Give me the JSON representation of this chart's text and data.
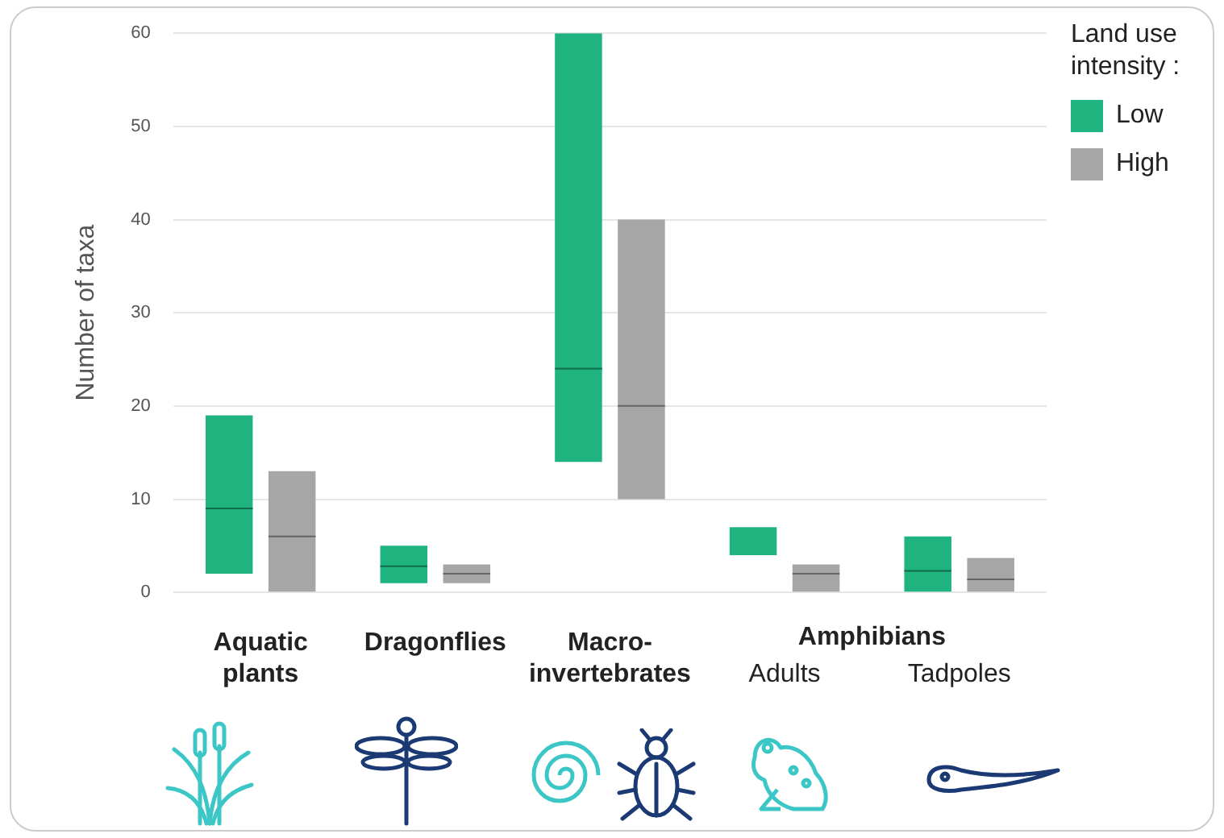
{
  "chart_data": {
    "type": "box",
    "ylabel": "Number of taxa",
    "legend_title": "Land use intensity :",
    "categories": [
      "Aquatic plants",
      "Dragonflies",
      "Macro-invertebrates",
      "Adults",
      "Tadpoles"
    ],
    "series": [
      {
        "name": "Low",
        "color": "#1fb47f",
        "boxes": [
          {
            "low": 2,
            "q1": 2,
            "median": 9,
            "q3": 19,
            "high": 19
          },
          {
            "low": 1,
            "q1": 1,
            "median": 2.8,
            "q3": 5,
            "high": 5
          },
          {
            "low": 14,
            "q1": 14,
            "median": 24,
            "q3": 60,
            "high": 60
          },
          {
            "low": 4,
            "q1": 4,
            "median": null,
            "q3": 7,
            "high": 7
          },
          {
            "low": 0,
            "q1": 0,
            "median": 2.3,
            "q3": 6,
            "high": 6
          }
        ]
      },
      {
        "name": "High",
        "color": "#a6a6a6",
        "boxes": [
          {
            "low": 0,
            "q1": 0,
            "median": 6,
            "q3": 13,
            "high": 13
          },
          {
            "low": 1,
            "q1": 1,
            "median": 2,
            "q3": 3,
            "high": 3
          },
          {
            "low": 10,
            "q1": 10,
            "median": 20,
            "q3": 40,
            "high": 40
          },
          {
            "low": 0,
            "q1": 0,
            "median": 2,
            "q3": 3,
            "high": 3
          },
          {
            "low": 0,
            "q1": 0,
            "median": 1.4,
            "q3": 3.7,
            "high": 3.7
          }
        ]
      }
    ],
    "ylim": [
      0,
      60
    ],
    "yticks": [
      0,
      10,
      20,
      30,
      40,
      50,
      60
    ],
    "grid": "y",
    "legend": "top right",
    "annotations": [
      "Amphibians"
    ]
  }
}
